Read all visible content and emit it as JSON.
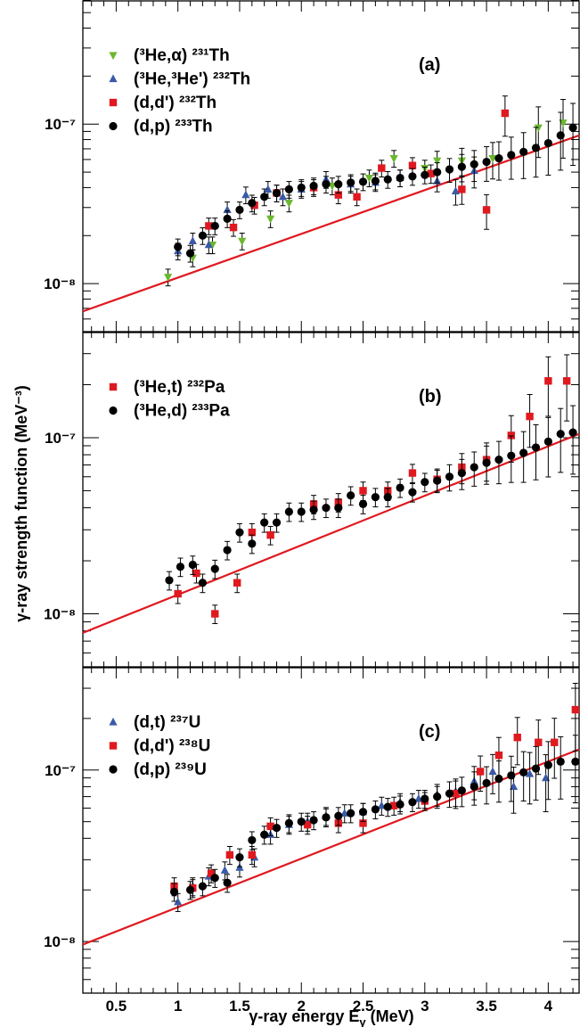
{
  "chart_data": [
    {
      "type": "scatter",
      "panel_label": "(a)",
      "xlim": [
        0.23,
        4.25
      ],
      "ylim": [
        5e-09,
        6e-07
      ],
      "yscale": "log",
      "ytick_labels": [
        {
          "value": 1e-08,
          "label": "10⁻⁸"
        },
        {
          "value": 1e-07,
          "label": "10⁻⁷"
        }
      ],
      "legend_position": "top-left",
      "fit_line": {
        "color": "#e0191f",
        "x": [
          0.23,
          4.25
        ],
        "y": [
          6.7e-09,
          8.5e-08
        ]
      },
      "series": [
        {
          "name": "(³He,α) ²³¹Th",
          "marker": "triangle-down",
          "color": "#6ab82e",
          "x": [
            0.92,
            1.12,
            1.28,
            1.52,
            1.75,
            1.9,
            2.25,
            2.55,
            2.75,
            3.0,
            3.1,
            3.3,
            3.55,
            3.92,
            4.12
          ],
          "y": [
            1.1e-08,
            1.45e-08,
            1.75e-08,
            1.85e-08,
            2.55e-08,
            3.2e-08,
            4.1e-08,
            4.6e-08,
            6.1e-08,
            5.3e-08,
            5.9e-08,
            5.9e-08,
            6.1e-08,
            9.5e-08,
            1.02e-07
          ]
        },
        {
          "name": "(³He,³He') ²³²Th",
          "marker": "triangle-up",
          "color": "#3a5aa8",
          "x": [
            1.0,
            1.12,
            1.25,
            1.4,
            1.55,
            1.73,
            1.85,
            2.0,
            2.2,
            2.4,
            2.6,
            2.8,
            3.1,
            3.25,
            3.4
          ],
          "y": [
            1.6e-08,
            1.85e-08,
            1.75e-08,
            2.9e-08,
            3.6e-08,
            3.9e-08,
            3.5e-08,
            3.9e-08,
            4.5e-08,
            4.2e-08,
            4.3e-08,
            4.6e-08,
            4.4e-08,
            3.8e-08,
            5.1e-08
          ]
        },
        {
          "name": "(d,d') ²³²Th",
          "marker": "square",
          "color": "#e0191f",
          "x": [
            1.25,
            1.45,
            1.62,
            1.8,
            2.1,
            2.3,
            2.45,
            2.65,
            2.9,
            3.05,
            3.3,
            3.5,
            3.65
          ],
          "y": [
            2.3e-08,
            2.25e-08,
            3.1e-08,
            3.7e-08,
            4e-08,
            3.6e-08,
            3.5e-08,
            5.3e-08,
            5.5e-08,
            4.9e-08,
            3.9e-08,
            2.9e-08,
            1.17e-07
          ]
        },
        {
          "name": "(d,p) ²³³Th",
          "marker": "circle",
          "color": "#000000",
          "x": [
            1.0,
            1.1,
            1.2,
            1.3,
            1.4,
            1.5,
            1.6,
            1.7,
            1.8,
            1.9,
            2.0,
            2.1,
            2.2,
            2.3,
            2.4,
            2.5,
            2.6,
            2.7,
            2.8,
            2.9,
            3.0,
            3.1,
            3.2,
            3.3,
            3.4,
            3.5,
            3.6,
            3.7,
            3.8,
            3.9,
            4.0,
            4.1,
            4.2
          ],
          "y": [
            1.7e-08,
            1.55e-08,
            2e-08,
            2.3e-08,
            2.55e-08,
            2.9e-08,
            3.2e-08,
            3.5e-08,
            3.7e-08,
            3.9e-08,
            4e-08,
            4.1e-08,
            4.2e-08,
            4.2e-08,
            4.3e-08,
            4.35e-08,
            4.4e-08,
            4.5e-08,
            4.6e-08,
            4.7e-08,
            4.8e-08,
            5e-08,
            5.2e-08,
            5.4e-08,
            5.6e-08,
            5.8e-08,
            6.1e-08,
            6.4e-08,
            6.7e-08,
            7.1e-08,
            7.6e-08,
            8.5e-08,
            9.5e-08
          ]
        }
      ]
    },
    {
      "type": "scatter",
      "panel_label": "(b)",
      "xlim": [
        0.23,
        4.25
      ],
      "ylim": [
        5e-09,
        4e-07
      ],
      "yscale": "log",
      "ytick_labels": [
        {
          "value": 1e-08,
          "label": "10⁻⁸"
        },
        {
          "value": 1e-07,
          "label": "10⁻⁷"
        }
      ],
      "legend_position": "top-left",
      "fit_line": {
        "color": "#e0191f",
        "x": [
          0.23,
          4.25
        ],
        "y": [
          7.8e-09,
          1.05e-07
        ]
      },
      "series": [
        {
          "name": "(³He,t) ²³²Pa",
          "marker": "square",
          "color": "#e0191f",
          "x": [
            1.0,
            1.15,
            1.3,
            1.48,
            1.6,
            1.75,
            2.1,
            2.3,
            2.5,
            2.7,
            2.9,
            3.1,
            3.3,
            3.5,
            3.7,
            3.85,
            4.0,
            4.15
          ],
          "y": [
            1.3e-08,
            1.7e-08,
            1e-08,
            1.5e-08,
            2.9e-08,
            2.8e-08,
            4.2e-08,
            4.3e-08,
            5e-08,
            5e-08,
            6.3e-08,
            5.8e-08,
            6.8e-08,
            7.5e-08,
            1.03e-07,
            1.32e-07,
            2.1e-07,
            2.1e-07
          ]
        },
        {
          "name": "(³He,d) ²³³Pa",
          "marker": "circle",
          "color": "#000000",
          "x": [
            0.93,
            1.02,
            1.12,
            1.2,
            1.3,
            1.4,
            1.5,
            1.6,
            1.7,
            1.8,
            1.9,
            2.0,
            2.1,
            2.2,
            2.3,
            2.4,
            2.5,
            2.6,
            2.7,
            2.8,
            2.9,
            3.0,
            3.1,
            3.2,
            3.3,
            3.4,
            3.5,
            3.6,
            3.7,
            3.8,
            3.9,
            4.0,
            4.1,
            4.2
          ],
          "y": [
            1.55e-08,
            1.85e-08,
            1.9e-08,
            1.5e-08,
            1.8e-08,
            2.3e-08,
            2.9e-08,
            2.5e-08,
            3.3e-08,
            3.3e-08,
            3.8e-08,
            3.8e-08,
            3.9e-08,
            4e-08,
            4e-08,
            4.7e-08,
            4.2e-08,
            4.6e-08,
            4.6e-08,
            5.2e-08,
            4.9e-08,
            5.6e-08,
            5.7e-08,
            6e-08,
            6.3e-08,
            6.8e-08,
            7.2e-08,
            7.5e-08,
            7.9e-08,
            8.2e-08,
            8.8e-08,
            9.5e-08,
            1.05e-07,
            1.07e-07
          ]
        }
      ]
    },
    {
      "type": "scatter",
      "panel_label": "(c)",
      "xlim": [
        0.23,
        4.25
      ],
      "ylim": [
        5e-09,
        4e-07
      ],
      "yscale": "log",
      "ytick_labels": [
        {
          "value": 1e-08,
          "label": "10⁻⁸"
        },
        {
          "value": 1e-07,
          "label": "10⁻⁷"
        }
      ],
      "xtick_labels": [
        "0.5",
        "1",
        "1.5",
        "2",
        "2.5",
        "3",
        "3.5",
        "4"
      ],
      "xticks": [
        0.5,
        1,
        1.5,
        2,
        2.5,
        3,
        3.5,
        4
      ],
      "xlabel": "γ-ray energy E_γ (MeV)",
      "legend_position": "top-left",
      "fit_line": {
        "color": "#e0191f",
        "x": [
          0.23,
          4.25
        ],
        "y": [
          9.6e-09,
          1.32e-07
        ]
      },
      "series": [
        {
          "name": "(d,t) ²³⁷U",
          "marker": "triangle-up",
          "color": "#3a5aa8",
          "x": [
            1.0,
            1.12,
            1.25,
            1.38,
            1.5,
            1.62,
            1.75,
            1.9,
            2.05,
            2.2,
            2.35,
            2.5,
            2.65,
            2.8,
            2.95,
            3.1,
            3.25,
            3.4,
            3.55,
            3.72,
            3.85,
            3.98
          ],
          "y": [
            1.7e-08,
            2.1e-08,
            2.4e-08,
            2.6e-08,
            2.7e-08,
            3.1e-08,
            4.2e-08,
            4.8e-08,
            5e-08,
            5.4e-08,
            5.6e-08,
            5.7e-08,
            6.2e-08,
            6.5e-08,
            6.8e-08,
            7.2e-08,
            7.5e-08,
            8.6e-08,
            9.8e-08,
            8e-08,
            9.5e-08,
            9e-08
          ]
        },
        {
          "name": "(d,d') ²³⁸U",
          "marker": "square",
          "color": "#e0191f",
          "x": [
            0.97,
            1.12,
            1.27,
            1.42,
            1.6,
            1.75,
            2.05,
            2.3,
            2.5,
            2.75,
            3.0,
            3.25,
            3.45,
            3.6,
            3.75,
            3.92,
            4.05,
            4.22
          ],
          "y": [
            2.1e-08,
            2.05e-08,
            2.5e-08,
            3.2e-08,
            3.2e-08,
            4.7e-08,
            4.8e-08,
            4.9e-08,
            4.9e-08,
            6.2e-08,
            6.6e-08,
            7.3e-08,
            9.8e-08,
            1.22e-07,
            1.55e-07,
            1.45e-07,
            1.45e-07,
            2.25e-07
          ]
        },
        {
          "name": "(d,p) ²³⁹U",
          "marker": "circle",
          "color": "#000000",
          "x": [
            0.97,
            1.1,
            1.2,
            1.3,
            1.4,
            1.5,
            1.6,
            1.7,
            1.8,
            1.9,
            2.0,
            2.1,
            2.2,
            2.3,
            2.4,
            2.5,
            2.6,
            2.7,
            2.8,
            2.9,
            3.0,
            3.1,
            3.2,
            3.3,
            3.4,
            3.5,
            3.6,
            3.7,
            3.8,
            3.9,
            4.0,
            4.1,
            4.22
          ],
          "y": [
            1.95e-08,
            2e-08,
            2.1e-08,
            2.35e-08,
            2.2e-08,
            3.1e-08,
            3.9e-08,
            4.2e-08,
            4.6e-08,
            4.9e-08,
            5e-08,
            5.1e-08,
            5.3e-08,
            5.4e-08,
            5.6e-08,
            5.7e-08,
            5.9e-08,
            6.1e-08,
            6.3e-08,
            6.5e-08,
            6.8e-08,
            7e-08,
            7.3e-08,
            7.6e-08,
            8e-08,
            8.4e-08,
            8.9e-08,
            9.3e-08,
            9.7e-08,
            1.02e-07,
            1.07e-07,
            1.12e-07,
            1.12e-07
          ]
        }
      ]
    }
  ],
  "ylabel": "γ-ray strength function (MeV⁻³)",
  "colors": {
    "fit_line": "#e0191f",
    "triangle_down": "#6ab82e",
    "triangle_up": "#3a5aa8",
    "square": "#e0191f",
    "circle": "#000000"
  }
}
